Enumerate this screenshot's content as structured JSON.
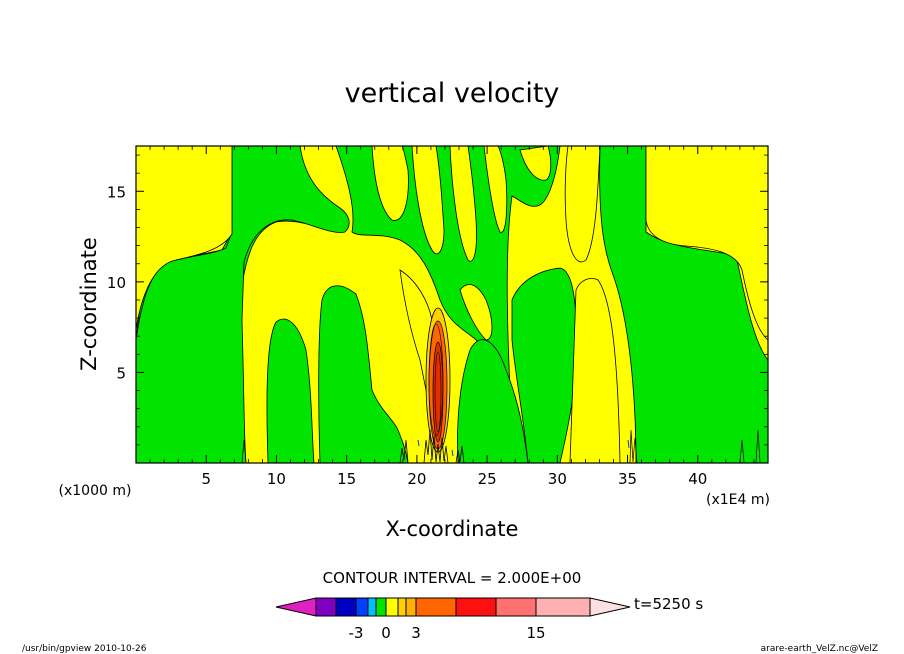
{
  "chart_data": {
    "type": "heatmap",
    "title": "vertical velocity",
    "xlabel": "X-coordinate",
    "ylabel": "Z-coordinate",
    "x_unit_label": "(x1E4 m)",
    "y_unit_label": "(x1000 m)",
    "xlim": [
      0,
      45
    ],
    "ylim": [
      0,
      17.5
    ],
    "x_ticks": [
      5,
      10,
      15,
      20,
      25,
      30,
      35,
      40
    ],
    "y_ticks": [
      5,
      10,
      15
    ],
    "grid": false,
    "field_colors": {
      "weak_positive": "#ffff00",
      "weak_negative": "#00e400",
      "updraft_core": "#ff6600",
      "updraft_peak": "#e03000",
      "contour_line": "#000000"
    },
    "core_updraft": {
      "x": 21.8,
      "z_range": [
        0.5,
        8.5
      ],
      "max_value_approx": 15
    },
    "contour_interval_text": "CONTOUR INTERVAL = 2.000E+00",
    "colorbar": {
      "colors": [
        "#e020c0",
        "#8000c0",
        "#0000c0",
        "#0040ff",
        "#00c0ff",
        "#00e400",
        "#ffff00",
        "#ffd000",
        "#ffb000",
        "#ff6600",
        "#ff1010",
        "#ff7070",
        "#ffb0b0",
        "#ffe0e0"
      ],
      "tick_labels": [
        "-3",
        "0",
        "3",
        "15"
      ],
      "tick_values": [
        -3,
        0,
        3,
        15
      ],
      "time_label": "t=5250 s"
    },
    "footer_left": "/usr/bin/gpview   2010-10-26",
    "footer_right": "arare-earth_VelZ.nc@VelZ"
  }
}
